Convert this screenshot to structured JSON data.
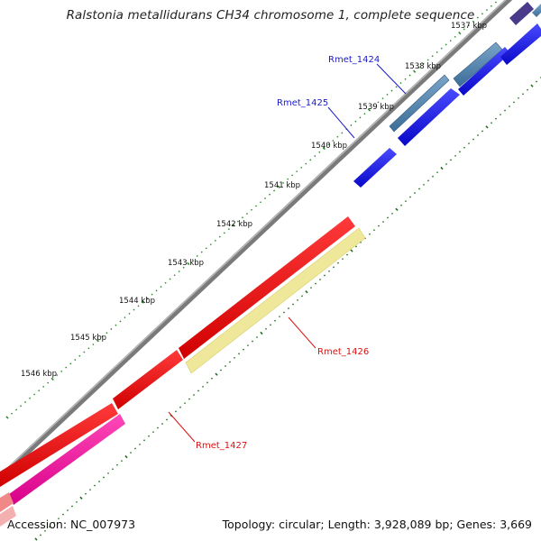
{
  "title": "Ralstonia metallidurans CH34 chromosome 1, complete sequence",
  "footer": {
    "accession": "Accession: NC_007973",
    "summary": "Topology: circular; Length: 3,928,089 bp; Genes: 3,669"
  },
  "colors": {
    "backbone": "#808080",
    "tick_minor": "#2a8a2a",
    "tick_major": "#1e6e1e",
    "forward_gene": "#1a1aee",
    "forward_gene_alt": "#4d7fa8",
    "reverse_gene": "#ee1111",
    "pseudo_gene": "#efe89a",
    "reverse_gene_alt": "#e8159a",
    "label_forward": "#1a1acc",
    "label_reverse": "#dd1111"
  },
  "kbp_ticks": [
    {
      "label": "1537 kbp"
    },
    {
      "label": "1538 kbp"
    },
    {
      "label": "1539 kbp"
    },
    {
      "label": "1540 kbp"
    },
    {
      "label": "1541 kbp"
    },
    {
      "label": "1542 kbp"
    },
    {
      "label": "1543 kbp"
    },
    {
      "label": "1544 kbp"
    },
    {
      "label": "1545 kbp"
    },
    {
      "label": "1546 kbp"
    }
  ],
  "gene_labels": [
    {
      "text": "Rmet_1424",
      "strand": "forward"
    },
    {
      "text": "Rmet_1425",
      "strand": "forward"
    },
    {
      "text": "Rmet_1426",
      "strand": "reverse"
    },
    {
      "text": "Rmet_1427",
      "strand": "reverse"
    }
  ]
}
